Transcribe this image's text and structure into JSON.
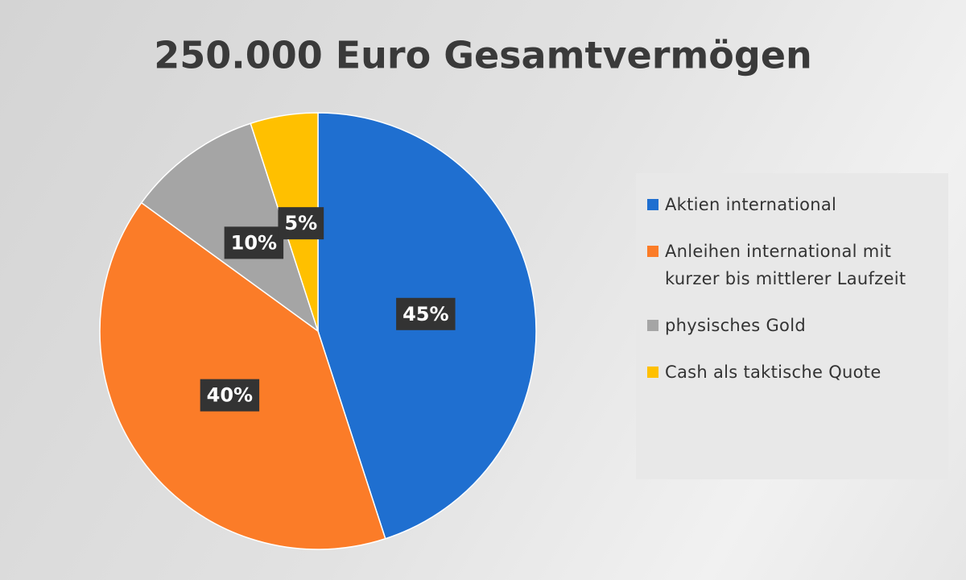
{
  "chart_data": {
    "type": "pie",
    "title": "250.000 Euro Gesamtvermögen",
    "categories": [
      "Aktien international",
      "Anleihen international mit kurzer bis mittlerer Laufzeit",
      "physisches Gold",
      "Cash als taktische Quote"
    ],
    "values": [
      45,
      40,
      10,
      5
    ],
    "value_labels": [
      "45%",
      "40%",
      "10%",
      "5%"
    ],
    "colors": [
      "#1f6fd0",
      "#fb7c28",
      "#a5a5a5",
      "#ffc000"
    ],
    "legend": "right"
  }
}
